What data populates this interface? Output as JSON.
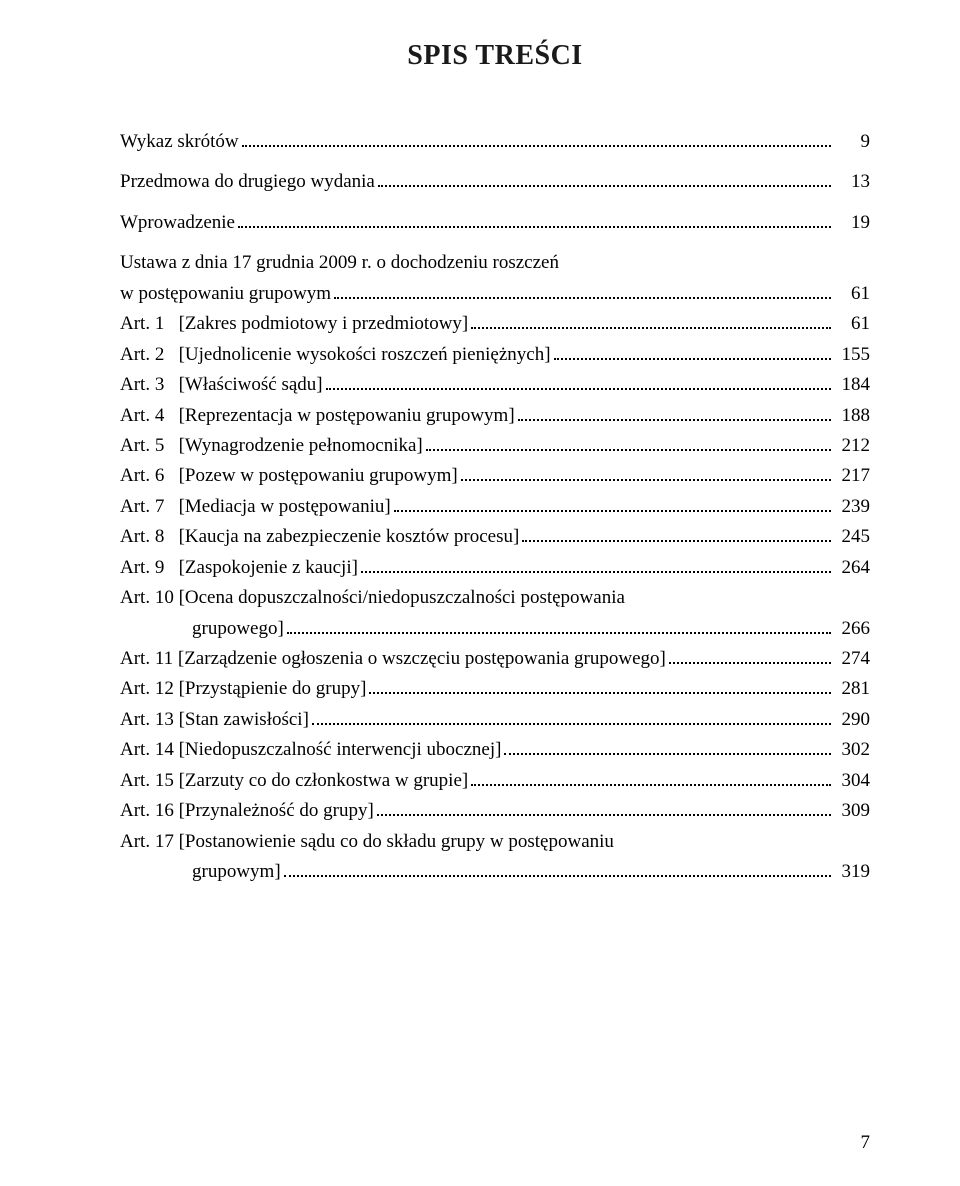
{
  "title": "SPIS TREŚCI",
  "title_fontsize": 28,
  "title_color": "#1a1a1a",
  "body_fontsize": 19,
  "text_color": "#000000",
  "background_color": "#ffffff",
  "page_number": "7",
  "front": [
    {
      "label": "",
      "text": "Wykaz skrótów",
      "page": "9",
      "bold": true
    },
    {
      "label": "",
      "text": "Przedmowa do drugiego wydania",
      "page": "13",
      "bold": true
    },
    {
      "label": "",
      "text": "Wprowadzenie",
      "page": "19",
      "bold": true
    }
  ],
  "statute_heading": {
    "line1": "Ustawa z dnia 17 grudnia 2009 r. o dochodzeniu roszczeń",
    "line2": "w postępowaniu grupowym",
    "page": "61"
  },
  "articles": [
    {
      "label": "Art. 1",
      "text": "[Zakres podmiotowy i przedmiotowy]",
      "page": "61"
    },
    {
      "label": "Art. 2",
      "text": "[Ujednolicenie wysokości roszczeń pieniężnych]",
      "page": "155"
    },
    {
      "label": "Art. 3",
      "text": "[Właściwość sądu]",
      "page": "184"
    },
    {
      "label": "Art. 4",
      "text": "[Reprezentacja w postępowaniu grupowym]",
      "page": "188"
    },
    {
      "label": "Art. 5",
      "text": "[Wynagrodzenie pełnomocnika]",
      "page": "212"
    },
    {
      "label": "Art. 6",
      "text": "[Pozew w postępowaniu grupowym]",
      "page": "217"
    },
    {
      "label": "Art. 7",
      "text": "[Mediacja w postępowaniu]",
      "page": "239"
    },
    {
      "label": "Art. 8",
      "text": "[Kaucja na zabezpieczenie kosztów procesu]",
      "page": "245"
    },
    {
      "label": "Art. 9",
      "text": "[Zaspokojenie z kaucji]",
      "page": "264"
    }
  ],
  "art10": {
    "label": "Art. 10",
    "line1": "[Ocena dopuszczalności/niedopuszczalności postępowania",
    "line2": "grupowego]",
    "page": "266"
  },
  "articles2": [
    {
      "label": "Art. 11",
      "text": "[Zarządzenie ogłoszenia o wszczęciu postępowania grupowego]",
      "page": "274"
    },
    {
      "label": "Art. 12",
      "text": "[Przystąpienie do grupy]",
      "page": "281"
    },
    {
      "label": "Art. 13",
      "text": "[Stan zawisłości]",
      "page": "290"
    },
    {
      "label": "Art. 14",
      "text": "[Niedopuszczalność interwencji ubocznej]",
      "page": "302"
    },
    {
      "label": "Art. 15",
      "text": "[Zarzuty co do członkostwa w grupie]",
      "page": "304"
    },
    {
      "label": "Art. 16",
      "text": "[Przynależność do grupy]",
      "page": "309"
    }
  ],
  "art17": {
    "label": "Art. 17",
    "line1": "[Postanowienie sądu co do składu grupy w postępowaniu",
    "line2": "grupowym]",
    "page": "319"
  }
}
